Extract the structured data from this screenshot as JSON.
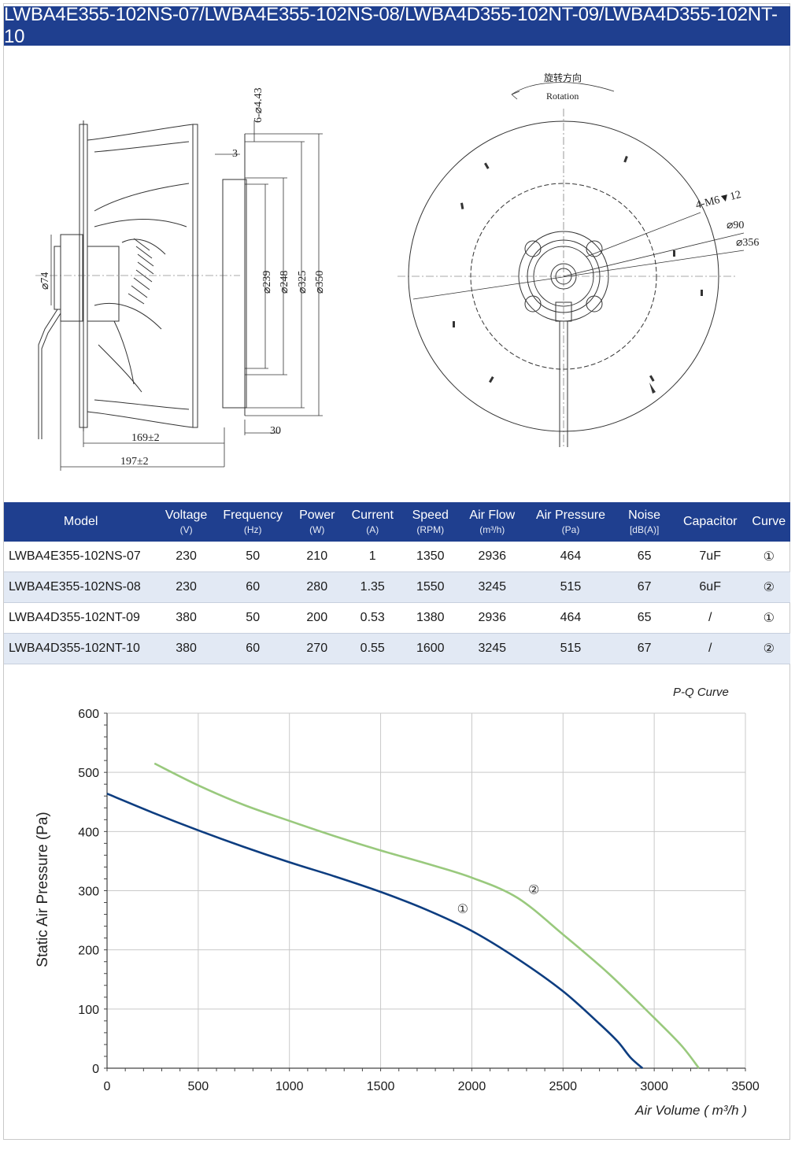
{
  "header": {
    "title": "LWBA4E355-102NS-07/LWBA4E355-102NS-08/LWBA4D355-102NT-09/LWBA4D355-102NT-10"
  },
  "drawing": {
    "dimensions": {
      "holes": "6-⌀4.43",
      "flange": "3",
      "d239": "⌀239",
      "d248": "⌀248",
      "d325": "⌀325",
      "d350": "⌀350",
      "d74": "⌀74",
      "len169": "169±2",
      "len197": "197±2",
      "len30": "30",
      "tap": "4-M6▼12",
      "d90": "⌀90",
      "d356": "⌀356"
    },
    "rotation_cn": "旋转方向",
    "rotation_en": "Rotation"
  },
  "table": {
    "columns": [
      {
        "label": "Model",
        "unit": ""
      },
      {
        "label": "Voltage",
        "unit": "(V)"
      },
      {
        "label": "Frequency",
        "unit": "(Hz)"
      },
      {
        "label": "Power",
        "unit": "(W)"
      },
      {
        "label": "Current",
        "unit": "(A)"
      },
      {
        "label": "Speed",
        "unit": "(RPM)"
      },
      {
        "label": "Air Flow",
        "unit": "(m³/h)"
      },
      {
        "label": "Air Pressure",
        "unit": "(Pa)"
      },
      {
        "label": "Noise",
        "unit": "[dB(A)]"
      },
      {
        "label": "Capacitor",
        "unit": ""
      },
      {
        "label": "Curve",
        "unit": ""
      }
    ],
    "rows": [
      [
        "LWBA4E355-102NS-07",
        "230",
        "50",
        "210",
        "1",
        "1350",
        "2936",
        "464",
        "65",
        "7uF",
        "①"
      ],
      [
        "LWBA4E355-102NS-08",
        "230",
        "60",
        "280",
        "1.35",
        "1550",
        "3245",
        "515",
        "67",
        "6uF",
        "②"
      ],
      [
        "LWBA4D355-102NT-09",
        "380",
        "50",
        "200",
        "0.53",
        "1380",
        "2936",
        "464",
        "65",
        "/",
        "①"
      ],
      [
        "LWBA4D355-102NT-10",
        "380",
        "60",
        "270",
        "0.55",
        "1600",
        "3245",
        "515",
        "67",
        "/",
        "②"
      ]
    ]
  },
  "chart_data": {
    "type": "line",
    "title": "P-Q Curve",
    "xlabel": "Air Volume ( m³/h )",
    "ylabel": "Static Air Pressure  (Pa)",
    "xlim": [
      0,
      3500
    ],
    "ylim": [
      0,
      600
    ],
    "xticks": [
      "0",
      "500",
      "1000",
      "1500",
      "2000",
      "2500",
      "3000",
      "3500"
    ],
    "yticks": [
      "0",
      "100",
      "200",
      "300",
      "400",
      "500",
      "600"
    ],
    "grid": true,
    "series": [
      {
        "name": "①",
        "color": "#0d3d80",
        "x": [
          0,
          250,
          500,
          750,
          1000,
          1250,
          1500,
          1750,
          2000,
          2250,
          2500,
          2700,
          2800,
          2870,
          2936
        ],
        "y": [
          464,
          432,
          402,
          374,
          348,
          324,
          298,
          268,
          232,
          185,
          130,
          75,
          45,
          18,
          0
        ]
      },
      {
        "name": "②",
        "color": "#99c97d",
        "x": [
          260,
          500,
          750,
          1000,
          1250,
          1500,
          1750,
          2000,
          2250,
          2500,
          2750,
          3000,
          3150,
          3245
        ],
        "y": [
          515,
          478,
          445,
          418,
          392,
          368,
          346,
          322,
          288,
          226,
          160,
          85,
          38,
          0
        ]
      }
    ],
    "annotations": [
      {
        "text": "①",
        "x": 1950,
        "y": 262
      },
      {
        "text": "②",
        "x": 2340,
        "y": 295
      }
    ]
  }
}
